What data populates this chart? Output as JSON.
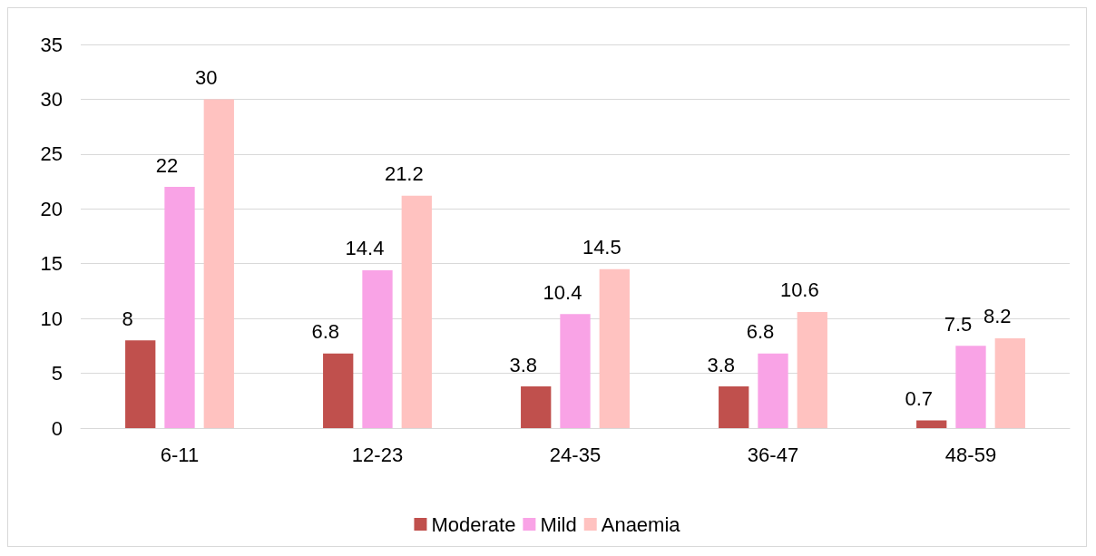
{
  "chart_data": {
    "type": "bar",
    "categories": [
      "6-11",
      "12-23",
      "24-35",
      "36-47",
      "48-59"
    ],
    "series": [
      {
        "name": "Moderate",
        "color": "#c0504d",
        "values": [
          8,
          6.8,
          3.8,
          3.8,
          0.7
        ]
      },
      {
        "name": "Mild",
        "color": "#f9a3e6",
        "values": [
          22,
          14.4,
          10.4,
          6.8,
          7.5
        ]
      },
      {
        "name": "Anaemia",
        "color": "#ffc2c0",
        "values": [
          30,
          21.2,
          14.5,
          10.6,
          8.2
        ]
      }
    ],
    "ylim": [
      0,
      35
    ],
    "yticks": [
      0,
      5,
      10,
      15,
      20,
      25,
      30,
      35
    ],
    "grid": "y",
    "legend": "bottom",
    "data_labels": true
  }
}
